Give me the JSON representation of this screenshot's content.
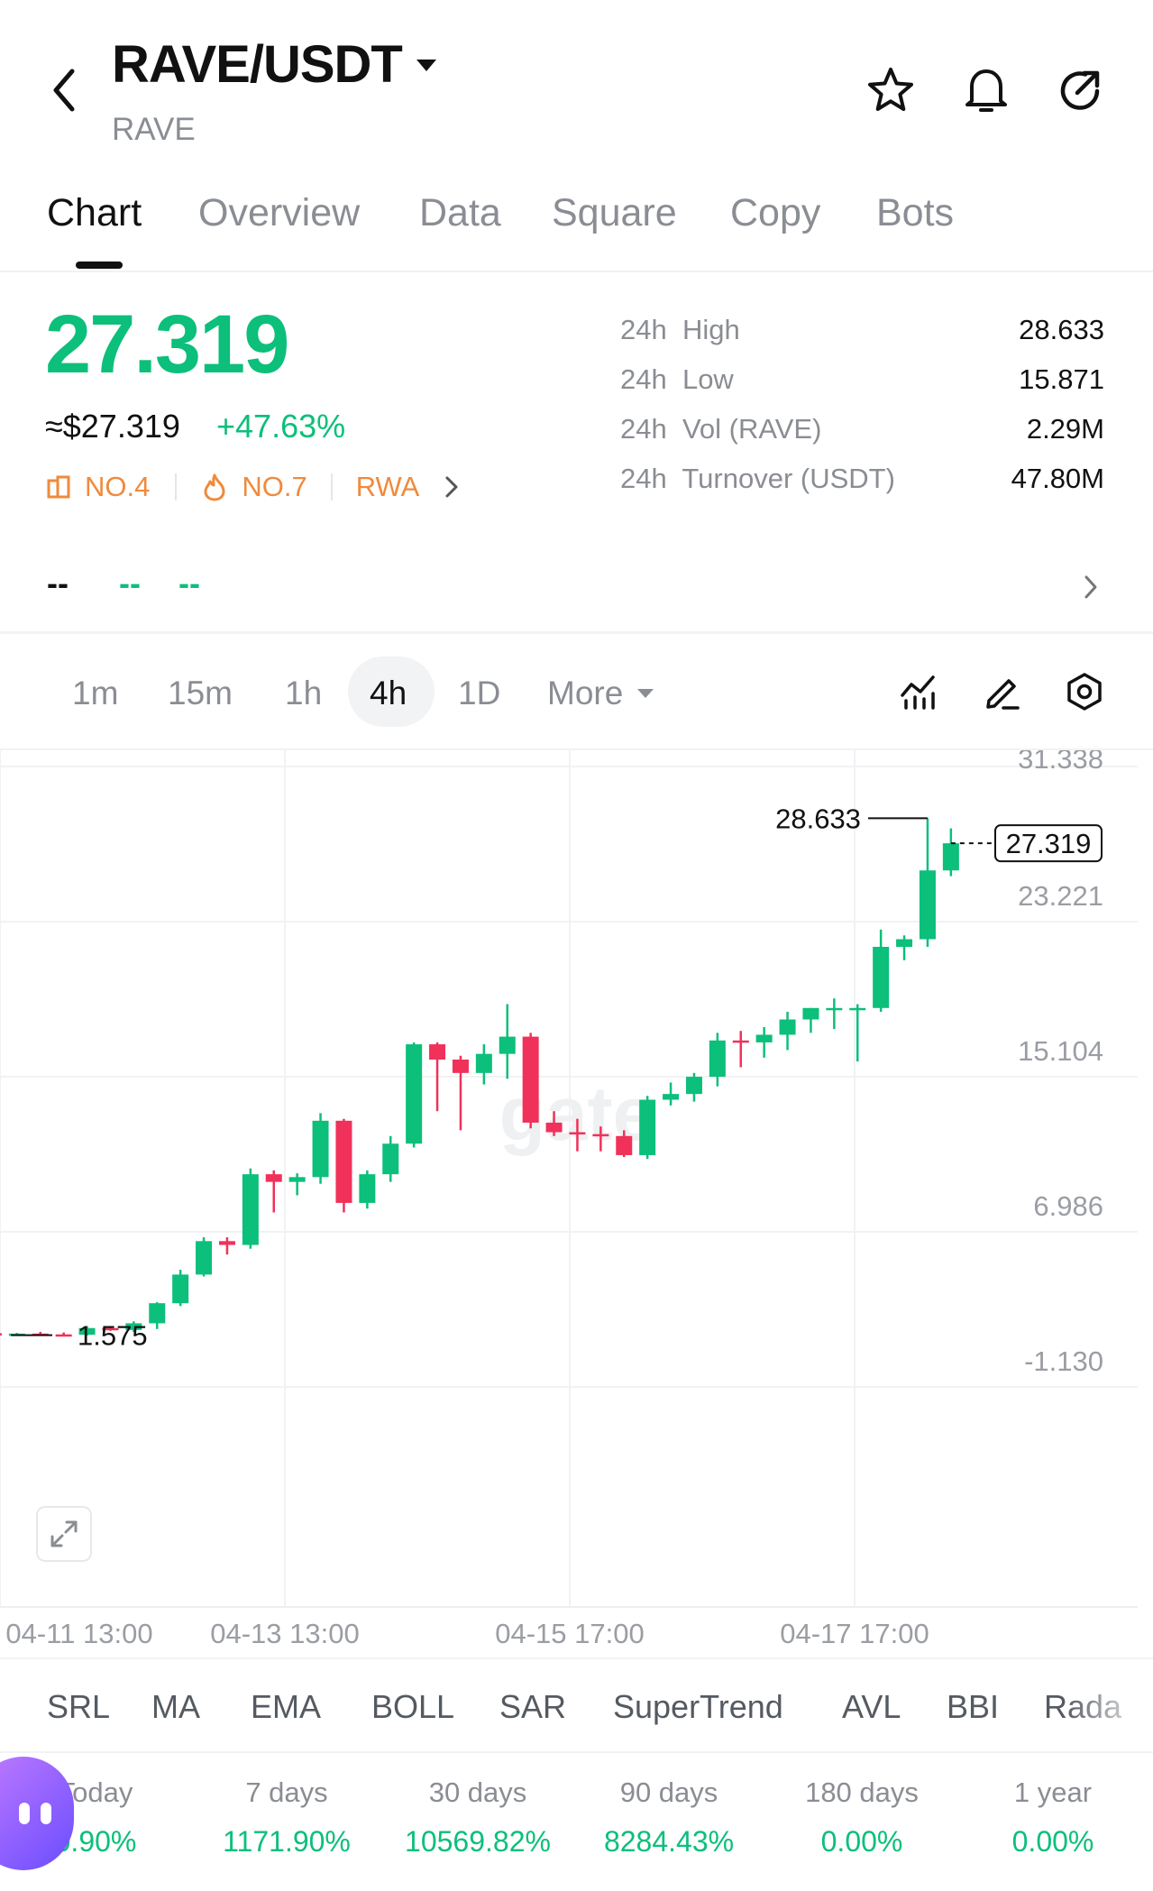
{
  "header": {
    "pair": "RAVE/USDT",
    "base": "RAVE"
  },
  "tabs": [
    "Chart",
    "Overview",
    "Data",
    "Square",
    "Copy",
    "Bots"
  ],
  "price": {
    "last": "27.319",
    "usd": "≈$27.319",
    "change": "+47.63%",
    "badges": [
      "NO.4",
      "NO.7",
      "RWA"
    ]
  },
  "stats": [
    {
      "label": "24h  High",
      "value": "28.633"
    },
    {
      "label": "24h  Low",
      "value": "15.871"
    },
    {
      "label": "24h  Vol (RAVE)",
      "value": "2.29M"
    },
    {
      "label": "24h  Turnover (USDT)",
      "value": "47.80M"
    }
  ],
  "placeholder_row": {
    "a": "--",
    "b": "--",
    "c": "--"
  },
  "timeframes": [
    "1m",
    "15m",
    "1h",
    "4h",
    "1D"
  ],
  "active_timeframe": "4h",
  "more_label": "More",
  "chart_data": {
    "type": "candlestick",
    "y_ticks": [
      "31.338",
      "23.221",
      "15.104",
      "6.986",
      "-1.130"
    ],
    "ylim": [
      -1.13,
      31.338
    ],
    "x_ticks": [
      "04-11 13:00",
      "04-13 13:00",
      "04-15 17:00",
      "04-17 17:00"
    ],
    "high_label": "28.633",
    "low_label": "1.575",
    "last_label": "27.319",
    "watermark": "gate",
    "up_color": "#0cbf7b",
    "down_color": "#f0315a",
    "candles": [
      {
        "o": 1.68,
        "h": 1.72,
        "l": 1.55,
        "c": 1.62
      },
      {
        "o": 1.62,
        "h": 1.7,
        "l": 1.55,
        "c": 1.66
      },
      {
        "o": 1.66,
        "h": 1.75,
        "l": 1.58,
        "c": 1.62
      },
      {
        "o": 1.62,
        "h": 1.72,
        "l": 1.56,
        "c": 1.6
      },
      {
        "o": 1.6,
        "h": 2.05,
        "l": 1.56,
        "c": 1.95
      },
      {
        "o": 1.95,
        "h": 2.05,
        "l": 1.8,
        "c": 1.85
      },
      {
        "o": 1.85,
        "h": 2.3,
        "l": 1.75,
        "c": 2.2
      },
      {
        "o": 2.2,
        "h": 3.3,
        "l": 1.9,
        "c": 3.25
      },
      {
        "o": 3.25,
        "h": 5.0,
        "l": 3.1,
        "c": 4.75
      },
      {
        "o": 4.75,
        "h": 6.7,
        "l": 4.65,
        "c": 6.5
      },
      {
        "o": 6.5,
        "h": 6.7,
        "l": 5.8,
        "c": 6.3
      },
      {
        "o": 6.3,
        "h": 10.3,
        "l": 6.1,
        "c": 10.0
      },
      {
        "o": 10.0,
        "h": 10.2,
        "l": 8.0,
        "c": 9.6
      },
      {
        "o": 9.6,
        "h": 10.05,
        "l": 8.9,
        "c": 9.85
      },
      {
        "o": 9.85,
        "h": 13.2,
        "l": 9.5,
        "c": 12.8
      },
      {
        "o": 12.8,
        "h": 12.9,
        "l": 8.0,
        "c": 8.5
      },
      {
        "o": 8.5,
        "h": 10.2,
        "l": 8.2,
        "c": 10.0
      },
      {
        "o": 10.0,
        "h": 12.0,
        "l": 9.6,
        "c": 11.6
      },
      {
        "o": 11.6,
        "h": 16.9,
        "l": 11.4,
        "c": 16.8
      },
      {
        "o": 16.8,
        "h": 16.9,
        "l": 13.3,
        "c": 16.0
      },
      {
        "o": 16.0,
        "h": 16.2,
        "l": 12.3,
        "c": 15.3
      },
      {
        "o": 15.3,
        "h": 16.8,
        "l": 14.7,
        "c": 16.3
      },
      {
        "o": 16.3,
        "h": 18.9,
        "l": 15.0,
        "c": 17.2
      },
      {
        "o": 17.2,
        "h": 17.4,
        "l": 12.4,
        "c": 12.7
      },
      {
        "o": 12.7,
        "h": 13.3,
        "l": 12.0,
        "c": 12.2
      },
      {
        "o": 12.2,
        "h": 12.9,
        "l": 11.2,
        "c": 12.1
      },
      {
        "o": 12.1,
        "h": 12.5,
        "l": 11.2,
        "c": 12.0
      },
      {
        "o": 12.0,
        "h": 12.3,
        "l": 10.9,
        "c": 11.0
      },
      {
        "o": 11.0,
        "h": 14.1,
        "l": 10.8,
        "c": 13.9
      },
      {
        "o": 13.9,
        "h": 14.8,
        "l": 13.6,
        "c": 14.2
      },
      {
        "o": 14.2,
        "h": 15.3,
        "l": 13.8,
        "c": 15.1
      },
      {
        "o": 15.1,
        "h": 17.4,
        "l": 14.6,
        "c": 17.0
      },
      {
        "o": 17.0,
        "h": 17.5,
        "l": 15.6,
        "c": 16.9
      },
      {
        "o": 16.9,
        "h": 17.7,
        "l": 16.1,
        "c": 17.3
      },
      {
        "o": 17.3,
        "h": 18.5,
        "l": 16.5,
        "c": 18.1
      },
      {
        "o": 18.1,
        "h": 18.7,
        "l": 17.4,
        "c": 18.7
      },
      {
        "o": 18.7,
        "h": 19.2,
        "l": 17.6,
        "c": 18.7
      },
      {
        "o": 18.7,
        "h": 18.9,
        "l": 15.9,
        "c": 18.7
      },
      {
        "o": 18.7,
        "h": 22.8,
        "l": 18.5,
        "c": 21.9
      },
      {
        "o": 21.9,
        "h": 22.5,
        "l": 21.2,
        "c": 22.3
      },
      {
        "o": 22.3,
        "h": 28.633,
        "l": 21.9,
        "c": 25.9
      },
      {
        "o": 25.9,
        "h": 28.1,
        "l": 25.6,
        "c": 27.319
      }
    ]
  },
  "indicators": [
    "SRL",
    "MA",
    "EMA",
    "BOLL",
    "SAR",
    "SuperTrend",
    "AVL",
    "BBI",
    "Rada"
  ],
  "performance": [
    {
      "label": "Today",
      "value": "0.90%"
    },
    {
      "label": "7 days",
      "value": "1171.90%"
    },
    {
      "label": "30 days",
      "value": "10569.82%"
    },
    {
      "label": "90 days",
      "value": "8284.43%"
    },
    {
      "label": "180 days",
      "value": "0.00%"
    },
    {
      "label": "1 year",
      "value": "0.00%"
    }
  ],
  "colors": {
    "up": "#0cbf7b",
    "down": "#f0315a",
    "badge": "#f08a3c",
    "assistant_gradient": [
      "#b36bff",
      "#6a4dff"
    ]
  }
}
